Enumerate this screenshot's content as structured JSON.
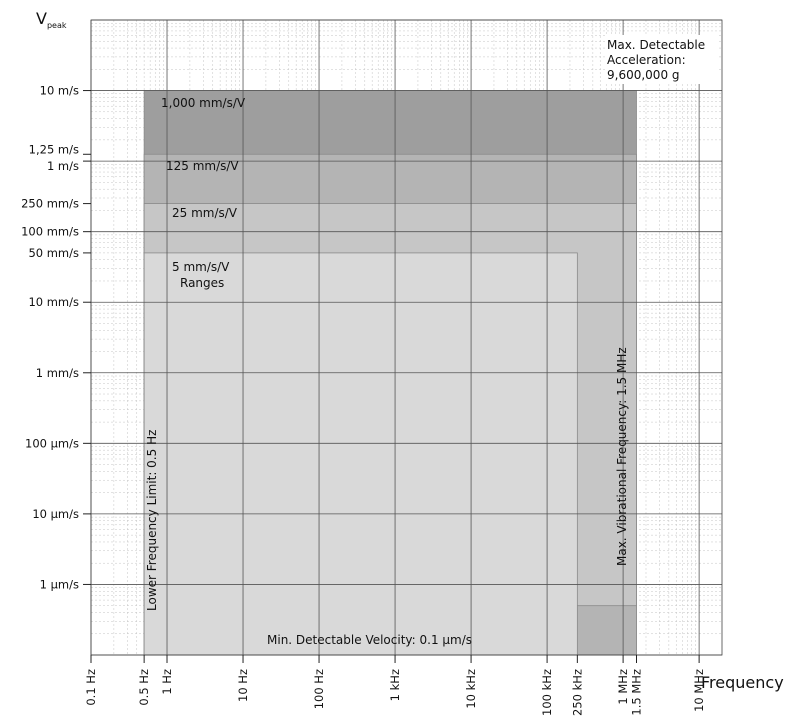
{
  "chart_data": {
    "type": "area",
    "xscale": "log",
    "yscale": "log",
    "x_unit": "Hz",
    "y_unit": "m/s",
    "xlim": [
      0.1,
      20000000
    ],
    "ylim": [
      1e-07,
      100
    ],
    "xlabel": "Frequency",
    "ylabel_main": "V",
    "ylabel_sub": "peak",
    "grid": true,
    "x_ticks": [
      {
        "value": 0.1,
        "label": "0.1 Hz"
      },
      {
        "value": 0.5,
        "label": "0.5 Hz"
      },
      {
        "value": 1,
        "label": "1 Hz"
      },
      {
        "value": 10,
        "label": "10 Hz"
      },
      {
        "value": 100,
        "label": "100 Hz"
      },
      {
        "value": 1000,
        "label": "1 kHz"
      },
      {
        "value": 10000,
        "label": "10 kHz"
      },
      {
        "value": 100000,
        "label": "100 kHz"
      },
      {
        "value": 250000,
        "label": "250 kHz"
      },
      {
        "value": 1000000,
        "label": "1 MHz"
      },
      {
        "value": 1500000,
        "label": "1.5 MHz"
      },
      {
        "value": 10000000,
        "label": "10 MHz"
      }
    ],
    "y_ticks": [
      {
        "value": 10,
        "label": "10 m/s"
      },
      {
        "value": 1.25,
        "label": "1,25 m/s"
      },
      {
        "value": 1,
        "label": "1 m/s"
      },
      {
        "value": 0.25,
        "label": "250 mm/s"
      },
      {
        "value": 0.1,
        "label": "100 mm/s"
      },
      {
        "value": 0.05,
        "label": "50 mm/s"
      },
      {
        "value": 0.01,
        "label": "10 mm/s"
      },
      {
        "value": 0.001,
        "label": "1 mm/s"
      },
      {
        "value": 0.0001,
        "label": "100 µm/s"
      },
      {
        "value": 1e-05,
        "label": "10 µm/s"
      },
      {
        "value": 1e-06,
        "label": "1 µm/s"
      }
    ],
    "series": [
      {
        "name": "1,000 mm/s/V",
        "x_range": [
          0.5,
          1500000
        ],
        "y_range": [
          1e-07,
          10
        ],
        "color": "#9e9e9e"
      },
      {
        "name": "125 mm/s/V",
        "x_range": [
          0.5,
          1500000
        ],
        "y_range": [
          1e-07,
          1.25
        ],
        "color": "#b4b4b4"
      },
      {
        "name": "25 mm/s/V",
        "x_range": [
          0.5,
          1500000
        ],
        "y_range": [
          5e-07,
          0.25
        ],
        "color": "#c6c6c6"
      },
      {
        "name": "5 mm/s/V",
        "x_range": [
          0.5,
          250000
        ],
        "y_range": [
          1e-07,
          0.05
        ],
        "color": "#d9d9d9"
      }
    ],
    "ranges_label": "Ranges",
    "annotations": {
      "max_acceleration": [
        "Max. Detectable",
        "Acceleration:",
        "9,600,000 g"
      ],
      "max_vib_freq": "Max. Vibrational Frequency: 1.5 MHz",
      "lower_freq": "Lower Frequency Limit: 0.5 Hz",
      "min_velocity": "Min. Detectable Velocity: 0.1 µm/s"
    }
  }
}
